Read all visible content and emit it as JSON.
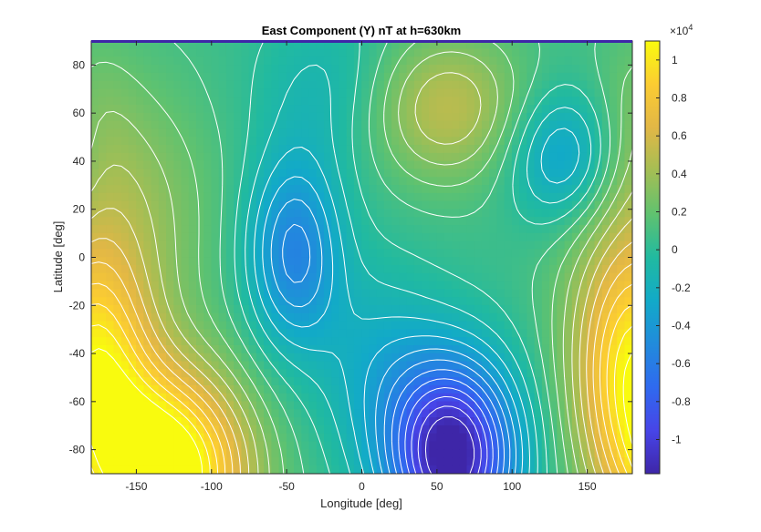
{
  "chart_data": {
    "type": "heatmap",
    "subtype": "filled-contour",
    "title": "East Component (Y) nT at h=630km",
    "xlabel": "Longitude [deg]",
    "ylabel": "Latitude [deg]",
    "xlim": [
      -180,
      180
    ],
    "ylim": [
      -90,
      90
    ],
    "xticks": [
      -150,
      -100,
      -50,
      0,
      50,
      100,
      150
    ],
    "yticks": [
      -80,
      -60,
      -40,
      -20,
      0,
      20,
      40,
      60,
      80
    ],
    "colorbar": {
      "colormap": "parula",
      "range": [
        -1.18,
        1.1
      ],
      "ticks": [
        -1,
        -0.8,
        -0.6,
        -0.4,
        -0.2,
        0,
        0.2,
        0.4,
        0.6,
        0.8,
        1
      ],
      "tick_labels": [
        "-1",
        "-0.8",
        "-0.6",
        "-0.4",
        "-0.2",
        "0",
        "0.2",
        "0.4",
        "0.6",
        "0.8",
        "1"
      ],
      "exponent_label": "×10",
      "exponent_power": "4"
    },
    "contour_lines": {
      "color": "#ffffff",
      "interval": 0.1
    },
    "field_features": [
      {
        "kind": "max",
        "lon": -130,
        "lat": -88,
        "value": 1.05
      },
      {
        "kind": "max",
        "lon": -140,
        "lat": 35,
        "value": 0.45
      },
      {
        "kind": "max",
        "lon": 50,
        "lat": 58,
        "value": 0.35
      },
      {
        "kind": "max",
        "lon": 172,
        "lat": -45,
        "value": 0.5
      },
      {
        "kind": "min",
        "lon": 60,
        "lat": -78,
        "value": -1.12
      },
      {
        "kind": "min",
        "lon": -45,
        "lat": 0,
        "value": -0.52
      },
      {
        "kind": "min",
        "lon": 135,
        "lat": 40,
        "value": -0.35
      }
    ]
  }
}
